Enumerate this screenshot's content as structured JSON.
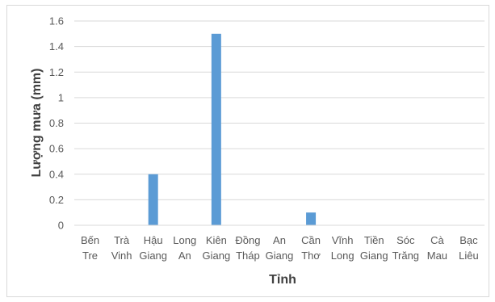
{
  "chart_data": {
    "type": "bar",
    "title": "",
    "xlabel": "Tỉnh",
    "ylabel": "Lượng mưa (mm)",
    "ylim": [
      0,
      1.6
    ],
    "yticks": [
      "0",
      "0.2",
      "0.4",
      "0.6",
      "0.8",
      "1",
      "1.2",
      "1.4",
      "1.6"
    ],
    "grid": true,
    "legend": "none",
    "bar_color": "#5b9bd5",
    "categories": [
      [
        "Bến",
        "Tre"
      ],
      [
        "Trà",
        "Vinh"
      ],
      [
        "Hậu",
        "Giang"
      ],
      [
        "Long",
        "An"
      ],
      [
        "Kiên",
        "Giang"
      ],
      [
        "Đồng",
        "Tháp"
      ],
      [
        "An",
        "Giang"
      ],
      [
        "Cần",
        "Thơ"
      ],
      [
        "Vĩnh",
        "Long"
      ],
      [
        "Tiền",
        "Giang"
      ],
      [
        "Sóc",
        "Trăng"
      ],
      [
        "Cà",
        "Mau"
      ],
      [
        "Bạc",
        "Liêu"
      ]
    ],
    "values": [
      0,
      0,
      0.4,
      0,
      1.5,
      0,
      0,
      0.1,
      0,
      0,
      0,
      0,
      0
    ]
  }
}
